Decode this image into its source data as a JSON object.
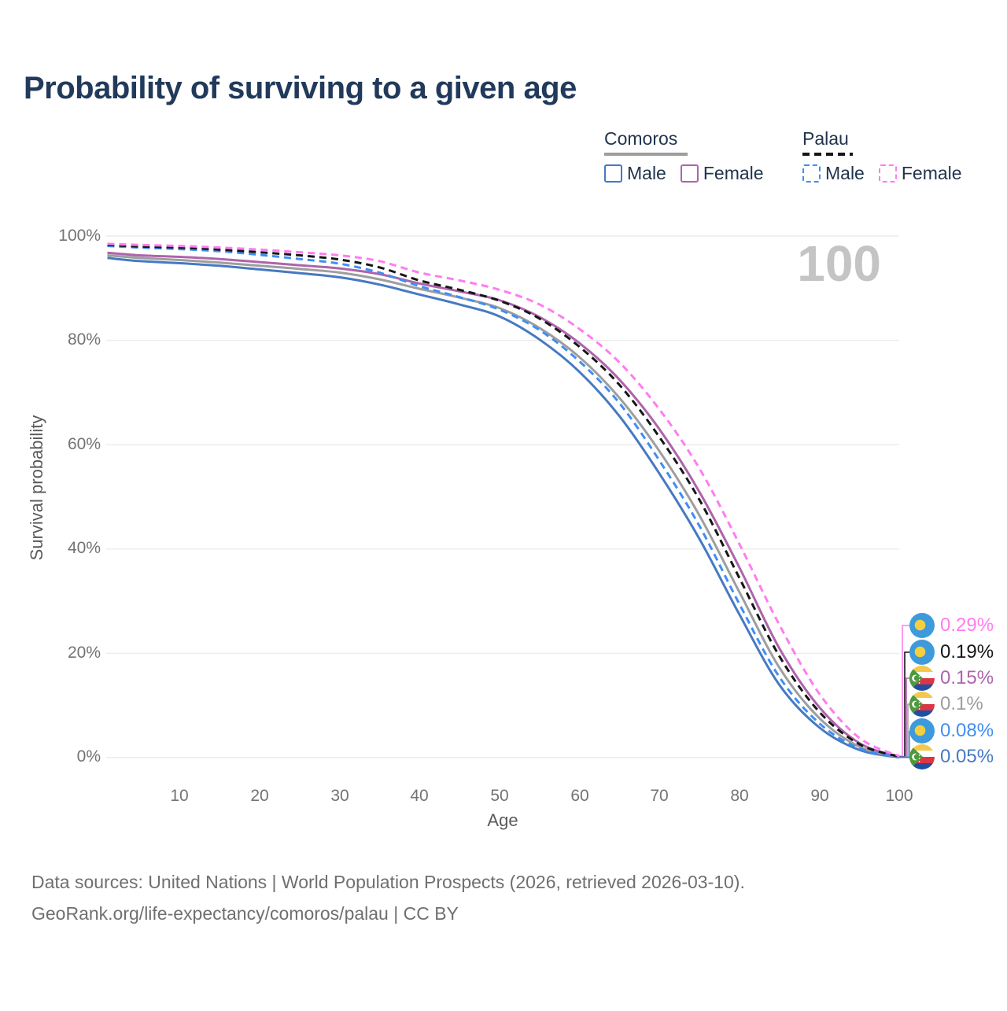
{
  "title": "Probability of surviving to a given age",
  "annotation_age": "100",
  "legend": {
    "groups": [
      {
        "name": "Comoros",
        "line_style": "solid",
        "line_color": "#9e9e9e",
        "items": [
          {
            "label": "Male",
            "color": "#4679c2"
          },
          {
            "label": "Female",
            "color": "#ad64ab"
          }
        ]
      },
      {
        "name": "Palau",
        "line_style": "dashed",
        "line_color": "#161616",
        "items": [
          {
            "label": "Male",
            "color": "#3f8ef5"
          },
          {
            "label": "Female",
            "color": "#ff7cf0"
          }
        ]
      }
    ]
  },
  "chart_data": {
    "type": "line",
    "title": "Probability of surviving to a given age",
    "xlabel": "Age",
    "ylabel": "Survival probability",
    "xlim": [
      1,
      100
    ],
    "ylim": [
      0,
      100
    ],
    "grid": "horizontal",
    "legend_position": "top-right",
    "xtick_labels": [
      "10",
      "20",
      "30",
      "40",
      "50",
      "60",
      "70",
      "80",
      "90",
      "100"
    ],
    "ytick_labels": [
      "100%",
      "80%",
      "60%",
      "40%",
      "20%",
      "0%"
    ],
    "x": [
      1,
      5,
      10,
      15,
      20,
      25,
      30,
      35,
      40,
      45,
      50,
      55,
      60,
      65,
      70,
      75,
      80,
      85,
      90,
      95,
      100
    ],
    "series": [
      {
        "name": "Comoros Male",
        "color": "#4679c2",
        "dash": false,
        "values": [
          95.8,
          95.2,
          94.8,
          94.3,
          93.6,
          92.9,
          92.1,
          90.7,
          88.8,
          86.9,
          84.6,
          80.2,
          74.0,
          65.5,
          54.5,
          42.0,
          27.5,
          14.0,
          5.8,
          1.5,
          0.05
        ]
      },
      {
        "name": "Comoros",
        "color": "#9e9e9e",
        "dash": false,
        "values": [
          96.3,
          95.8,
          95.4,
          94.9,
          94.3,
          93.7,
          93.0,
          91.7,
          89.9,
          88.2,
          86.2,
          82.4,
          76.8,
          69.0,
          58.8,
          46.5,
          31.8,
          17.3,
          7.6,
          2.1,
          0.1
        ]
      },
      {
        "name": "Comoros Female",
        "color": "#ad64ab",
        "dash": false,
        "values": [
          96.8,
          96.3,
          96.0,
          95.6,
          95.0,
          94.4,
          93.8,
          92.7,
          90.9,
          89.4,
          87.7,
          84.5,
          79.5,
          72.5,
          63.0,
          51.0,
          36.5,
          21.0,
          9.7,
          2.8,
          0.15
        ]
      },
      {
        "name": "Palau Male",
        "color": "#3f8ef5",
        "dash": true,
        "values": [
          98.1,
          97.8,
          97.5,
          97.1,
          96.4,
          95.6,
          94.7,
          93.0,
          90.4,
          88.3,
          85.9,
          82.0,
          76.0,
          68.0,
          57.0,
          44.5,
          29.5,
          15.5,
          6.6,
          1.8,
          0.08
        ]
      },
      {
        "name": "Palau",
        "color": "#161616",
        "dash": true,
        "values": [
          98.3,
          98.0,
          97.8,
          97.4,
          96.9,
          96.3,
          95.5,
          94.0,
          91.5,
          89.7,
          87.6,
          84.2,
          78.8,
          71.5,
          61.5,
          49.5,
          34.5,
          19.5,
          8.8,
          2.6,
          0.19
        ]
      },
      {
        "name": "Palau Female",
        "color": "#ff7cf0",
        "dash": true,
        "values": [
          98.5,
          98.3,
          98.1,
          97.8,
          97.4,
          96.9,
          96.3,
          95.2,
          93.0,
          91.5,
          89.7,
          86.9,
          82.2,
          75.8,
          66.8,
          55.5,
          41.0,
          25.5,
          12.3,
          3.8,
          0.29
        ]
      }
    ]
  },
  "end_labels": [
    {
      "flag": "palau",
      "series": "Palau Female",
      "value": "0.29%",
      "value_num": 0.29,
      "color": "#ff7cf0"
    },
    {
      "flag": "palau",
      "series": "Palau",
      "value": "0.19%",
      "value_num": 0.19,
      "color": "#161616"
    },
    {
      "flag": "comoros",
      "series": "Comoros Female",
      "value": "0.15%",
      "value_num": 0.15,
      "color": "#ad64ab"
    },
    {
      "flag": "comoros",
      "series": "Comoros",
      "value": "0.1%",
      "value_num": 0.1,
      "color": "#9e9e9e"
    },
    {
      "flag": "palau",
      "series": "Palau Male",
      "value": "0.08%",
      "value_num": 0.08,
      "color": "#3f8ef5"
    },
    {
      "flag": "comoros",
      "series": "Comoros Male",
      "value": "0.05%",
      "value_num": 0.05,
      "color": "#4679c2"
    }
  ],
  "footer": {
    "line1": "Data sources: United Nations | World Population Prospects (2026, retrieved 2026-03-10).",
    "line2": "GeoRank.org/life-expectancy/comoros/palau | CC BY"
  }
}
